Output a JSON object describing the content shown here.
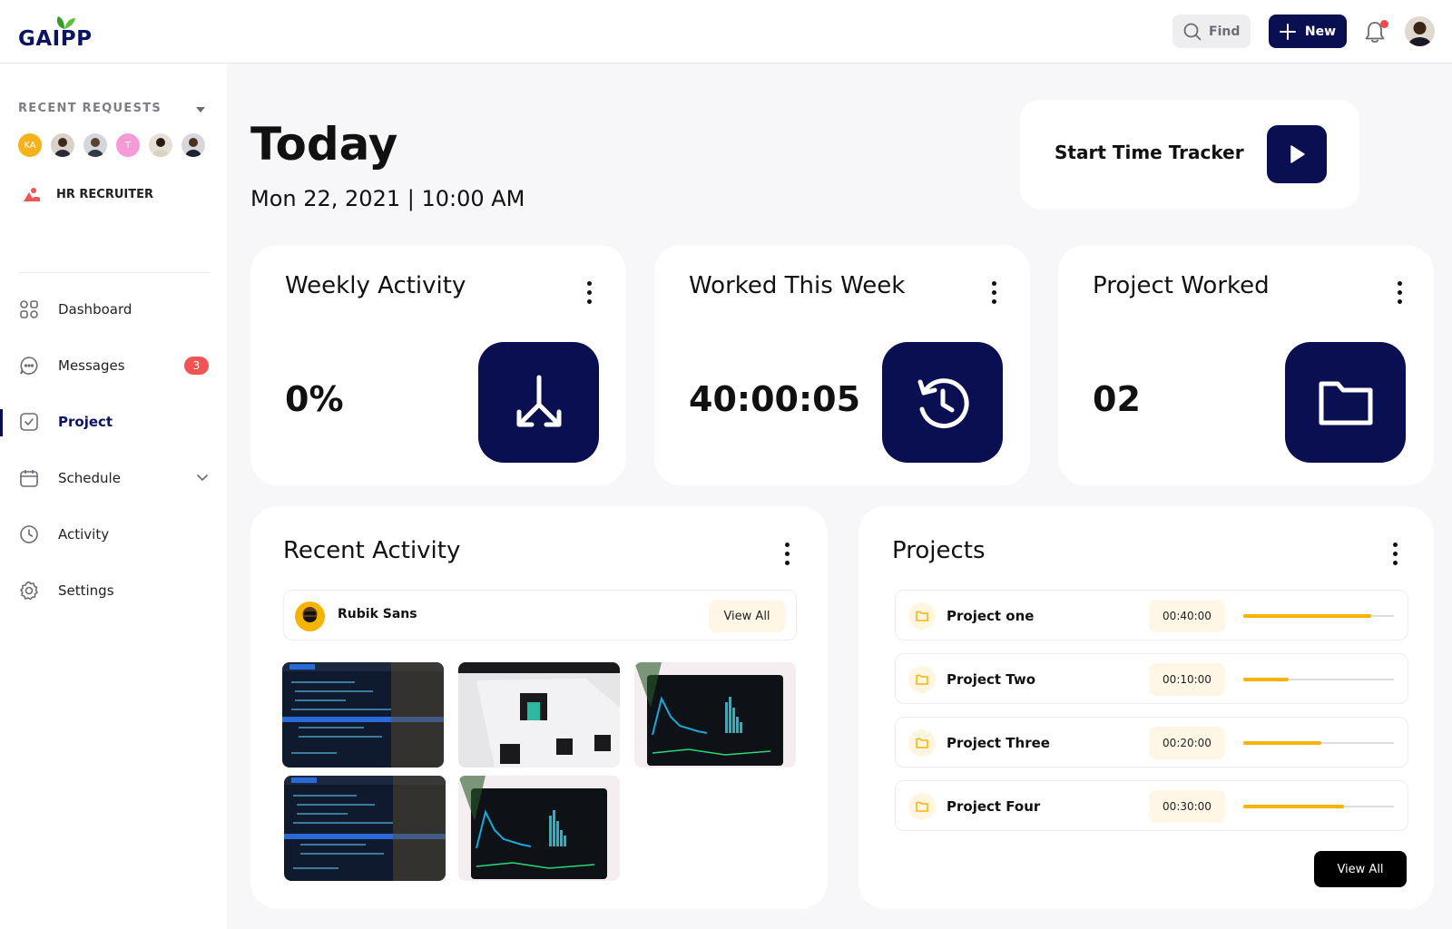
{
  "header": {
    "logo_text": "GAIPP",
    "find_label": "Find",
    "new_label": "New"
  },
  "sidebar": {
    "recent_requests_title": "RECENT REQUESTS",
    "avatars": [
      {
        "initials": "KA",
        "color": "#f6b21d"
      },
      {
        "initials": "",
        "color": "#d8d2c8"
      },
      {
        "initials": "",
        "color": "#d3d7dc"
      },
      {
        "initials": "T",
        "color": "#f79bd8"
      },
      {
        "initials": "",
        "color": "#e6dfd6"
      },
      {
        "initials": "",
        "color": "#d6d6dc"
      }
    ],
    "hr_label": "HR RECRUITER",
    "nav": {
      "dashboard": "Dashboard",
      "messages": "Messages",
      "messages_badge": "3",
      "project": "Project",
      "schedule": "Schedule",
      "activity": "Activity",
      "settings": "Settings"
    }
  },
  "main": {
    "title": "Today",
    "date": "Mon 22, 2021 | 10:00 AM",
    "tracker_label": "Start Time Tracker",
    "stats": [
      {
        "title": "Weekly Activity",
        "value": "0%",
        "icon": "download-arrows-icon"
      },
      {
        "title": "Worked This Week",
        "value": "40:00:05",
        "icon": "history-clock-icon"
      },
      {
        "title": "Project Worked",
        "value": "02",
        "icon": "folder-icon"
      }
    ]
  },
  "recent_activity": {
    "title": "Recent Activity",
    "user_name": "Rubik Sans",
    "view_all": "View All"
  },
  "projects": {
    "title": "Projects",
    "view_all": "View All",
    "items": [
      {
        "name": "Project one",
        "time": "00:40:00",
        "progress": 0.85
      },
      {
        "name": "Project Two",
        "time": "00:10:00",
        "progress": 0.3
      },
      {
        "name": "Project Three",
        "time": "00:20:00",
        "progress": 0.52
      },
      {
        "name": "Project Four",
        "time": "00:30:00",
        "progress": 0.67
      }
    ]
  },
  "colors": {
    "navy": "#0a0f52",
    "accent_yellow": "#f5b400",
    "badge_red": "#f05454"
  }
}
